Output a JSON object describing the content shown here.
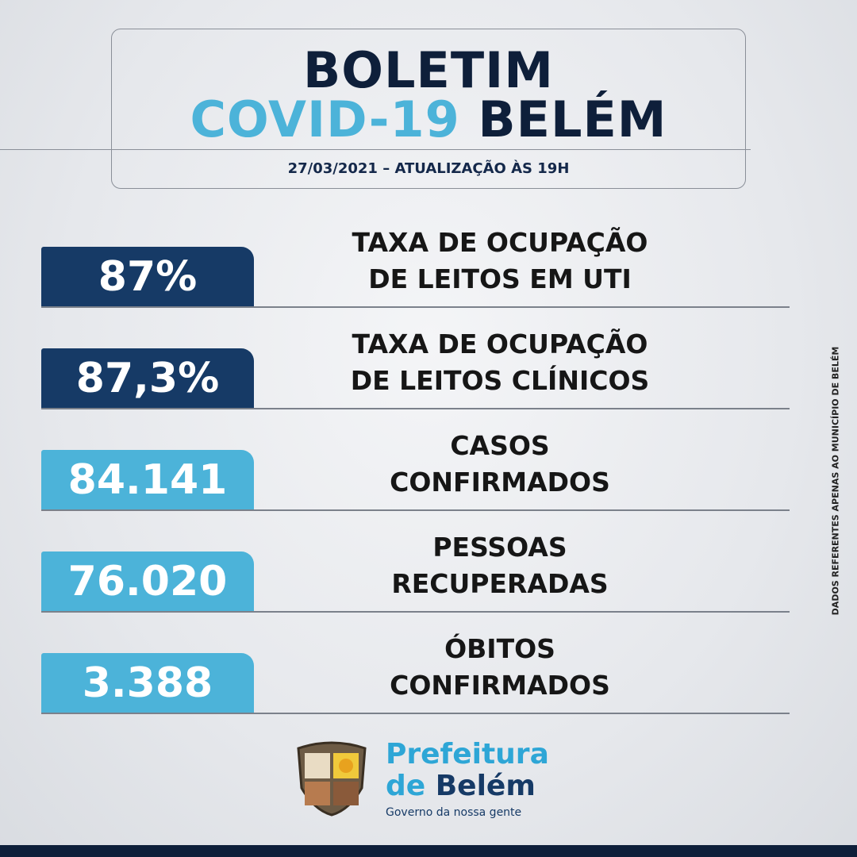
{
  "header": {
    "title_line1": "BOLETIM",
    "title_line2_part1": "COVID-19",
    "title_line2_part2": "BELÉM",
    "subtitle": "27/03/2021 – ATUALIZAÇÃO ÀS 19H"
  },
  "stats": [
    {
      "value": "87%",
      "label": [
        "TAXA DE OCUPAÇÃO",
        "DE LEITOS EM UTI"
      ],
      "color": "#163a66"
    },
    {
      "value": "87,3%",
      "label": [
        "TAXA DE OCUPAÇÃO",
        "DE LEITOS CLÍNICOS"
      ],
      "color": "#163a66"
    },
    {
      "value": "84.141",
      "label": [
        "CASOS",
        "CONFIRMADOS"
      ],
      "color": "#4cb3d9"
    },
    {
      "value": "76.020",
      "label": [
        "PESSOAS",
        "RECUPERADAS"
      ],
      "color": "#4cb3d9"
    },
    {
      "value": "3.388",
      "label": [
        "ÓBITOS",
        "CONFIRMADOS"
      ],
      "color": "#4cb3d9"
    }
  ],
  "side_note": "DADOS REFERENTES APENAS AO MUNICÍPIO DE BELÉM",
  "logo": {
    "line1": "Prefeitura",
    "line2_part1": "de",
    "line2_part2": "Belém",
    "tagline": "Governo da nossa gente"
  }
}
